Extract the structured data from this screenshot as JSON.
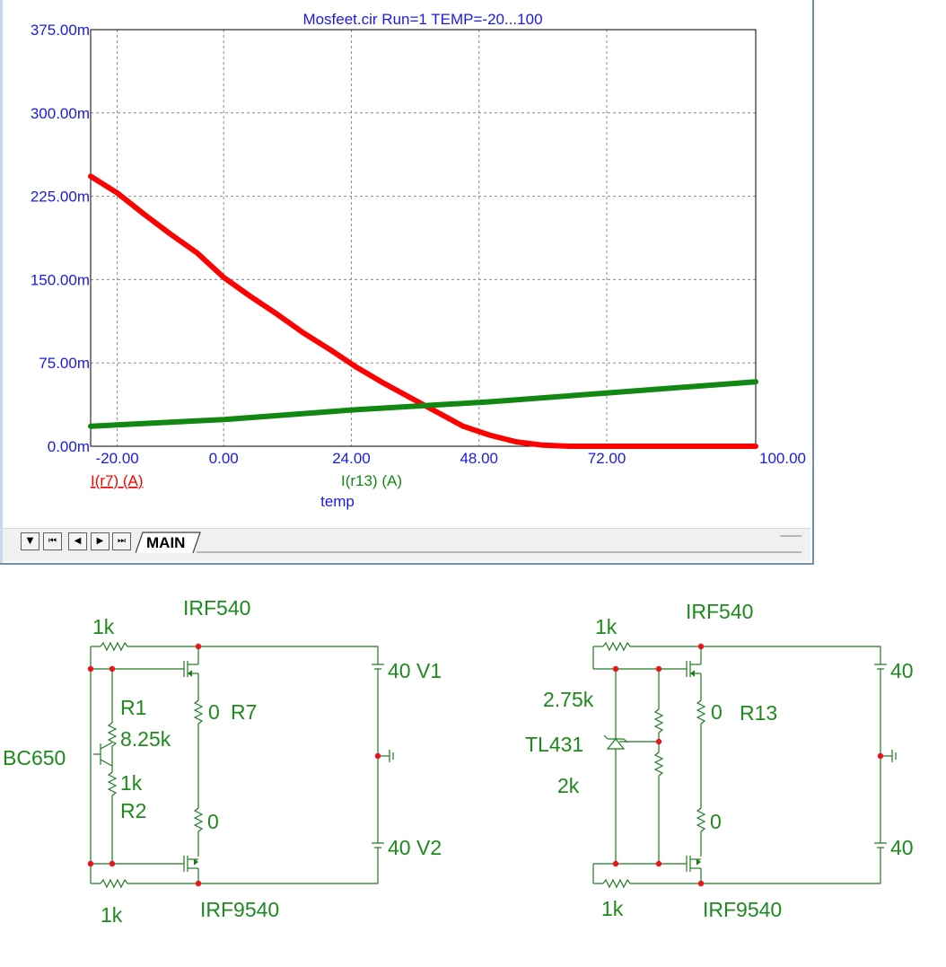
{
  "chart_data": {
    "type": "line",
    "title": "Mosfeet.cir Run=1 TEMP=-20...100",
    "xlabel": "temp",
    "ylabel": "",
    "xlim": [
      -25,
      100
    ],
    "ylim": [
      0,
      375
    ],
    "x_ticks": [
      -20,
      0,
      24,
      48,
      72,
      100
    ],
    "x_tick_labels": [
      "-20.00",
      "0.00",
      "24.00",
      "48.00",
      "72.00",
      "100.00"
    ],
    "y_ticks": [
      0,
      75,
      150,
      225,
      300,
      375
    ],
    "y_tick_labels": [
      "0.00m",
      "75.00m",
      "150.00m",
      "225.00m",
      "300.00m",
      "375.00m"
    ],
    "grid": true,
    "series": [
      {
        "name": "I(r7) (A)",
        "color": "#ff0000",
        "x": [
          -25,
          -20,
          -15,
          -10,
          -5,
          0,
          5,
          10,
          15,
          20,
          25,
          30,
          35,
          40,
          45,
          50,
          55,
          60,
          65,
          70,
          80,
          90,
          100
        ],
        "values": [
          243,
          228,
          209,
          191,
          174,
          152,
          135,
          119,
          102,
          87,
          71,
          57,
          44,
          31,
          18,
          10,
          4,
          1,
          0,
          0,
          0,
          0,
          0
        ]
      },
      {
        "name": "I(r13) (A)",
        "color": "#118811",
        "x": [
          -25,
          0,
          25,
          50,
          75,
          100
        ],
        "values": [
          18,
          24,
          33,
          40,
          49,
          58
        ]
      }
    ]
  },
  "tabs": {
    "active": "MAIN"
  },
  "nav_buttons": [
    {
      "icon": "scroll-down-icon",
      "glyph": "▼"
    },
    {
      "icon": "first-page-icon",
      "glyph": "⏮"
    },
    {
      "icon": "prev-page-icon",
      "glyph": "◀"
    },
    {
      "icon": "next-page-icon",
      "glyph": "▶"
    },
    {
      "icon": "last-page-icon",
      "glyph": "⏭"
    }
  ],
  "schematic_left": {
    "r_top": "1k",
    "q_top": "IRF540",
    "v1": "40 V1",
    "r1_name": "R1",
    "r1_value": "8.25k",
    "r7_value": "0",
    "r7_name": "R7",
    "bjt": "BC650",
    "r2_value": "1k",
    "r2_name": "R2",
    "r_mid_value": "0",
    "v2": "40 V2",
    "r_bottom": "1k",
    "q_bottom": "IRF9540"
  },
  "schematic_right": {
    "r_top": "1k",
    "q_top": "IRF540",
    "v_top": "40",
    "r_div_top": "2.75k",
    "r13_value": "0",
    "r13_name": "R13",
    "ref": "TL431",
    "r_div_bottom": "2k",
    "r_mid_value": "0",
    "v_bottom": "40",
    "r_bottom": "1k",
    "q_bottom": "IRF9540"
  },
  "colors": {
    "axis_text": "#1a1ae6",
    "series_red": "#ff0000",
    "series_green": "#118811",
    "schematic_wire": "#1e7a1e",
    "schematic_label": "#1e8a1e",
    "node_dot": "#e8141e"
  }
}
